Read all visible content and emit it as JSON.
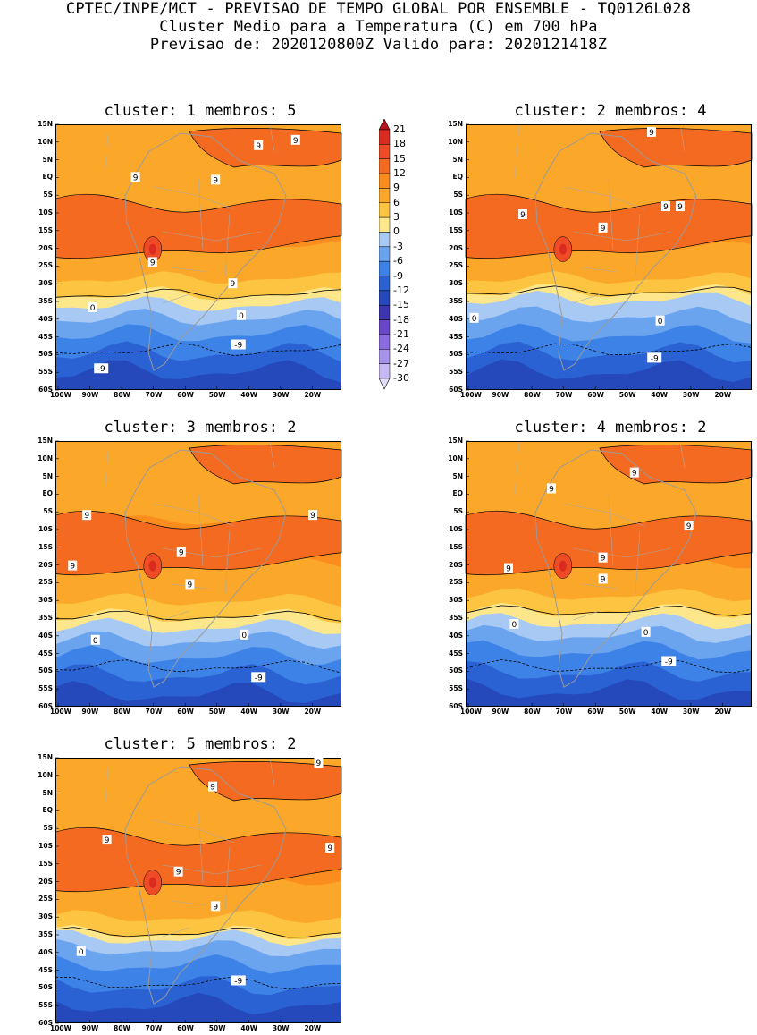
{
  "header": {
    "line1": "CPTEC/INPE/MCT - PREVISAO DE TEMPO GLOBAL POR ENSEMBLE - TQ0126L028",
    "line2": "Cluster Medio para a Temperatura (C) em 700 hPa",
    "line3": "Previsao de: 2020120800Z   Valido para: 2020121418Z"
  },
  "lat_labels": [
    "15N",
    "10N",
    "5N",
    "EQ",
    "5S",
    "10S",
    "15S",
    "20S",
    "25S",
    "30S",
    "35S",
    "40S",
    "45S",
    "50S",
    "55S",
    "60S"
  ],
  "lon_labels": [
    "100W",
    "90W",
    "80W",
    "70W",
    "60W",
    "50W",
    "40W",
    "30W",
    "20W"
  ],
  "colorbar": {
    "levels": [
      "21",
      "18",
      "15",
      "12",
      "9",
      "6",
      "3",
      "0",
      "-3",
      "-6",
      "-9",
      "-12",
      "-15",
      "-18",
      "-21",
      "-24",
      "-27",
      "-30"
    ],
    "colors": [
      "#b8141e",
      "#d92b1f",
      "#ef4b26",
      "#f36a20",
      "#fb8c1e",
      "#fba82a",
      "#fcc440",
      "#fee68a",
      "#a7c9f3",
      "#6aa4ef",
      "#3d82e6",
      "#2a62d3",
      "#2549bb",
      "#3b35b0",
      "#6a47c8",
      "#8b6ce0",
      "#a792ec",
      "#c5b8f5",
      "#e3ddfb"
    ]
  },
  "panels": [
    {
      "title": "cluster: 1   membros: 5",
      "contour_labels": [
        "9",
        "9",
        "9",
        "9",
        "9",
        "9",
        "0",
        "0",
        "-9",
        "-9"
      ]
    },
    {
      "title": "cluster: 2   membros: 4",
      "contour_labels": [
        "9",
        "9",
        "9",
        "9",
        "9",
        "0",
        "0",
        "-9"
      ]
    },
    {
      "title": "cluster: 3   membros: 2",
      "contour_labels": [
        "9",
        "9",
        "9",
        "9",
        "9",
        "0",
        "0",
        "-9"
      ]
    },
    {
      "title": "cluster: 4   membros: 2",
      "contour_labels": [
        "9",
        "9",
        "9",
        "9",
        "9",
        "9",
        "0",
        "0",
        "-9"
      ]
    },
    {
      "title": "cluster: 5   membros: 2",
      "contour_labels": [
        "9",
        "9",
        "9",
        "9",
        "9",
        "9",
        "0",
        "-9"
      ]
    }
  ]
}
